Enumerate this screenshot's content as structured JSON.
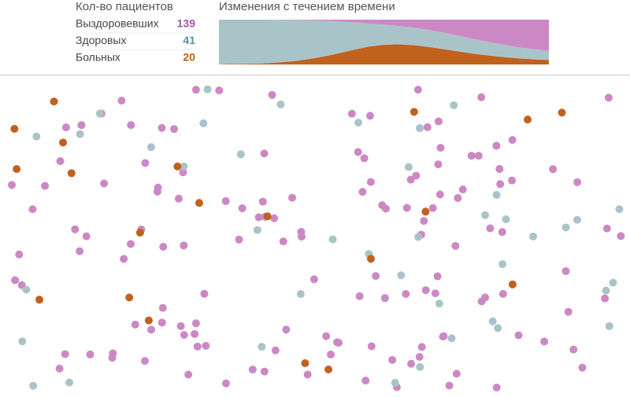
{
  "stats": {
    "title": "Кол-во пациентов",
    "rows": [
      {
        "label": "Выздоровевших",
        "value": 139,
        "color": "#a2569e"
      },
      {
        "label": "Здоровых",
        "value": 41,
        "color": "#5f8f98"
      },
      {
        "label": "Больных",
        "value": 20,
        "color": "#b5601e"
      }
    ]
  },
  "chart_data": {
    "type": "area",
    "title": "Изменения с течением времени",
    "stacked": true,
    "ylim": [
      0,
      200
    ],
    "series": [
      {
        "color": "#c0621e",
        "values": [
          1,
          2,
          3,
          5,
          9,
          15,
          24,
          36,
          50,
          66,
          80,
          88,
          90,
          86,
          78,
          68,
          58,
          48,
          40,
          33,
          27,
          23,
          20
        ]
      },
      {
        "color": "#a9c4c9",
        "values": [
          199,
          198,
          197,
          195,
          190,
          183,
          173,
          159,
          142,
          122,
          103,
          90,
          82,
          78,
          76,
          74,
          70,
          66,
          60,
          55,
          49,
          45,
          41
        ]
      },
      {
        "color": "#cc88c4",
        "values": [
          0,
          0,
          0,
          0,
          1,
          2,
          3,
          5,
          8,
          12,
          17,
          22,
          28,
          36,
          46,
          58,
          72,
          86,
          100,
          112,
          124,
          132,
          139
        ]
      }
    ]
  }
}
